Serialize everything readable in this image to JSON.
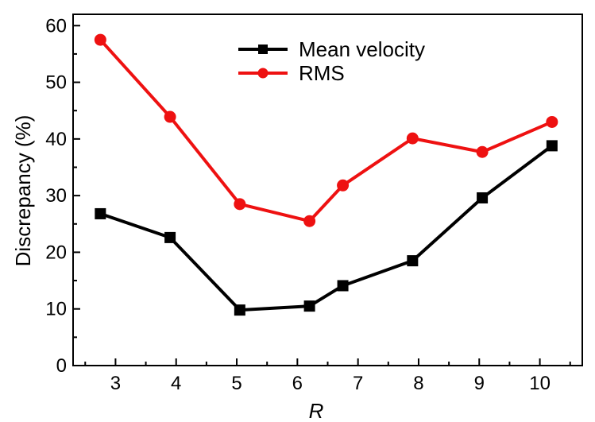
{
  "chart_data": {
    "type": "line",
    "title": "",
    "xlabel": "R",
    "ylabel": "Discrepancy (%)",
    "xlim": [
      2.3,
      10.7
    ],
    "ylim": [
      0,
      62
    ],
    "x_ticks": [
      3,
      4,
      5,
      6,
      7,
      8,
      9,
      10
    ],
    "y_ticks": [
      0,
      10,
      20,
      30,
      40,
      50,
      60
    ],
    "legend_position": "top-center",
    "grid": false,
    "series": [
      {
        "name": "Mean velocity",
        "color": "#000000",
        "marker": "square",
        "x": [
          2.75,
          3.9,
          5.05,
          6.2,
          6.75,
          7.9,
          9.05,
          10.2
        ],
        "values": [
          26.8,
          22.6,
          9.8,
          10.5,
          14.1,
          18.5,
          29.6,
          38.8
        ]
      },
      {
        "name": "RMS",
        "color": "#ee1111",
        "marker": "circle",
        "x": [
          2.75,
          3.9,
          5.05,
          6.2,
          6.75,
          7.9,
          9.05,
          10.2
        ],
        "values": [
          57.5,
          43.9,
          28.5,
          25.5,
          31.8,
          40.1,
          37.7,
          43.0
        ]
      }
    ]
  }
}
